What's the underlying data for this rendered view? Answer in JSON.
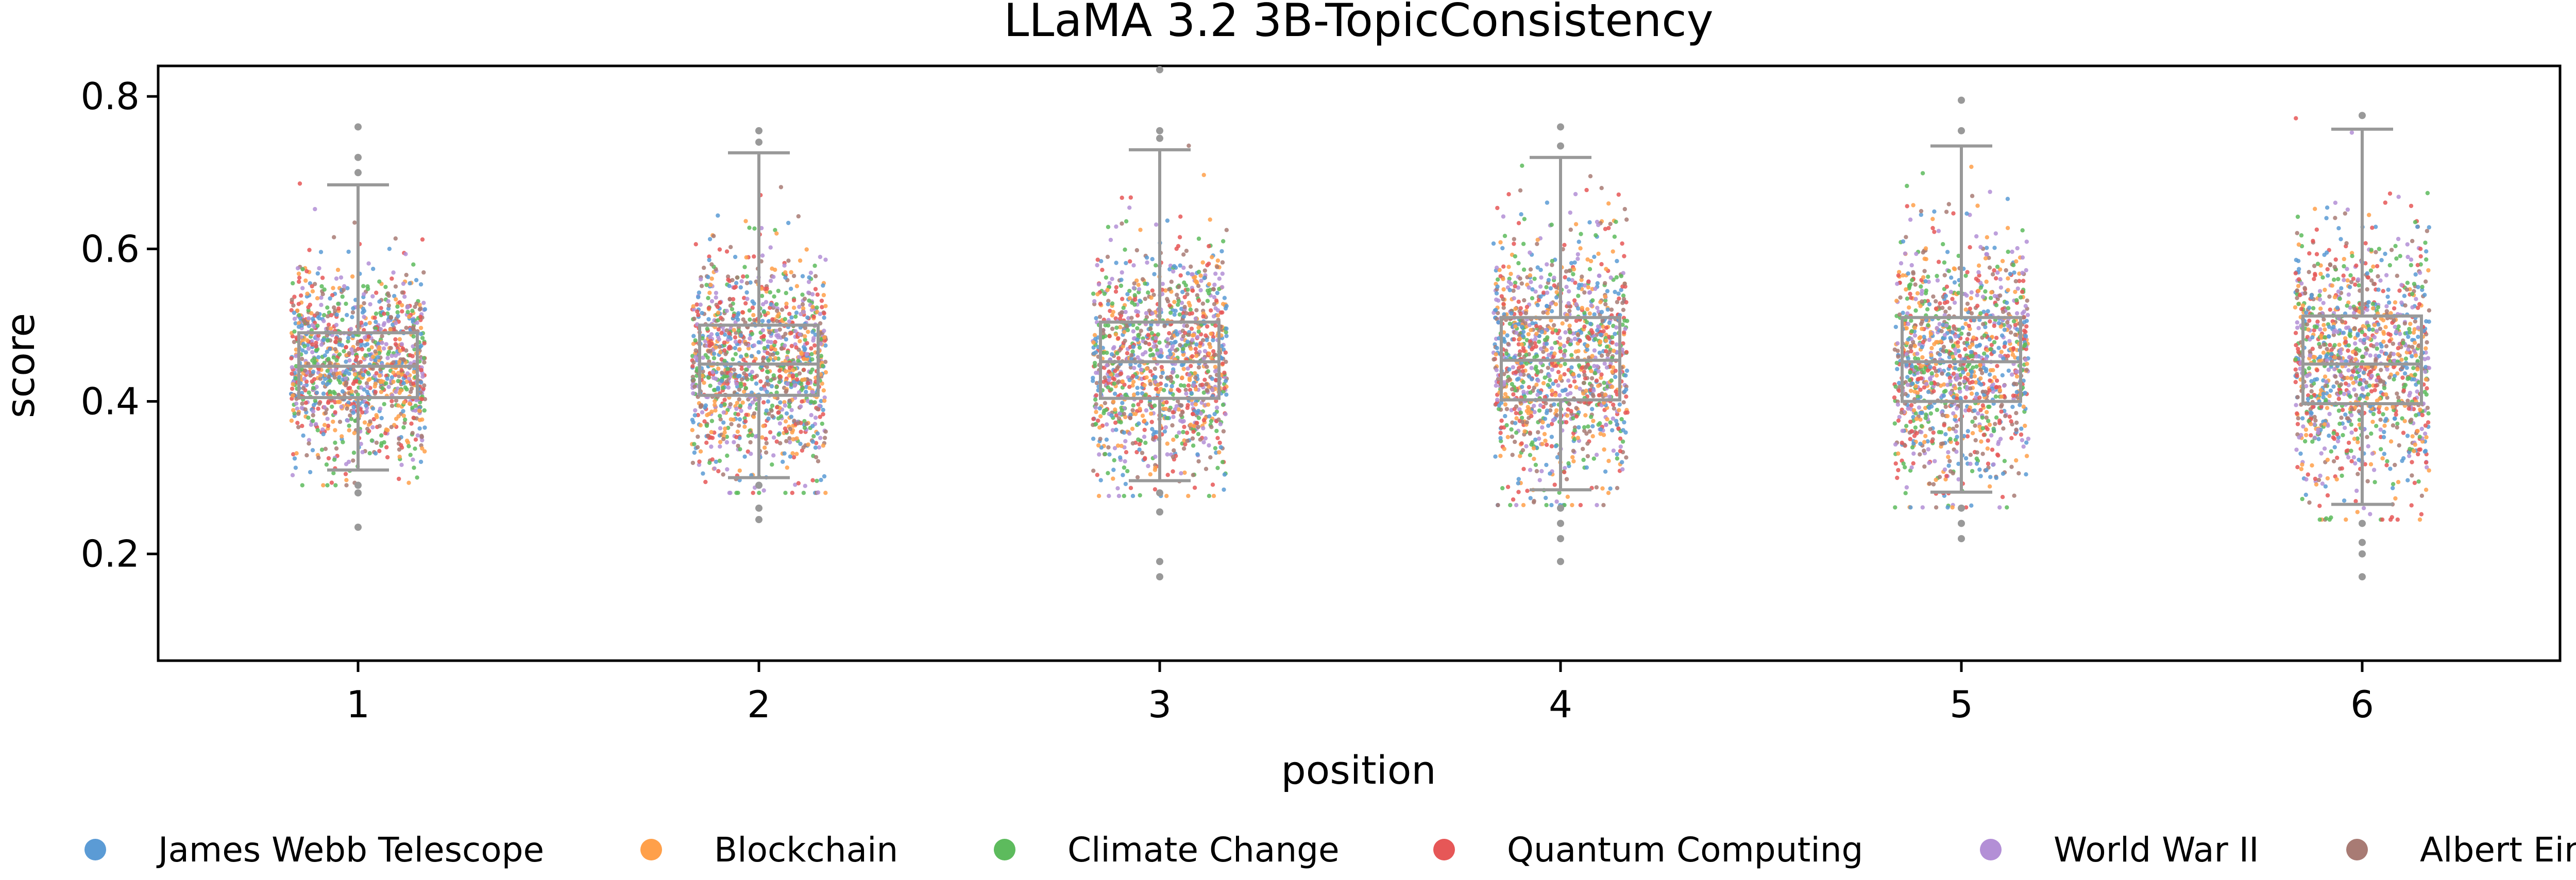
{
  "chart_data": {
    "type": "box",
    "title": "LLaMA 3.2 3B-TopicConsistency",
    "xlabel": "position",
    "ylabel": "score",
    "categories": [
      "1",
      "2",
      "3",
      "4",
      "5",
      "6"
    ],
    "ylim": [
      0.06,
      0.84
    ],
    "yticks": [
      0.2,
      0.4,
      0.6,
      0.8
    ],
    "ytick_labels": [
      "0.2",
      "0.4",
      "0.6",
      "0.8"
    ],
    "grid": false,
    "legend_position": "bottom",
    "box_color": "#999999",
    "boxes": [
      {
        "position": "1",
        "whisker_low": 0.31,
        "q1": 0.405,
        "median": 0.446,
        "q3": 0.49,
        "whisker_high": 0.684,
        "outliers": [
          0.29,
          0.28,
          0.235,
          0.7,
          0.72,
          0.76
        ]
      },
      {
        "position": "2",
        "whisker_low": 0.3,
        "q1": 0.408,
        "median": 0.449,
        "q3": 0.5,
        "whisker_high": 0.726,
        "outliers": [
          0.29,
          0.26,
          0.245,
          0.74,
          0.755
        ]
      },
      {
        "position": "3",
        "whisker_low": 0.296,
        "q1": 0.404,
        "median": 0.452,
        "q3": 0.504,
        "whisker_high": 0.73,
        "outliers": [
          0.28,
          0.255,
          0.19,
          0.17,
          0.745,
          0.755,
          0.835
        ]
      },
      {
        "position": "4",
        "whisker_low": 0.284,
        "q1": 0.402,
        "median": 0.454,
        "q3": 0.51,
        "whisker_high": 0.72,
        "outliers": [
          0.26,
          0.24,
          0.22,
          0.19,
          0.735,
          0.76
        ]
      },
      {
        "position": "5",
        "whisker_low": 0.281,
        "q1": 0.4,
        "median": 0.452,
        "q3": 0.51,
        "whisker_high": 0.735,
        "outliers": [
          0.26,
          0.24,
          0.22,
          0.755,
          0.795
        ]
      },
      {
        "position": "6",
        "whisker_low": 0.265,
        "q1": 0.397,
        "median": 0.449,
        "q3": 0.512,
        "whisker_high": 0.757,
        "outliers": [
          0.24,
          0.215,
          0.2,
          0.17,
          0.775
        ]
      }
    ],
    "series": [
      {
        "name": "James Webb Telescope",
        "color": "#5b9bd5"
      },
      {
        "name": "Blockchain",
        "color": "#ffa04a"
      },
      {
        "name": "Climate Change",
        "color": "#5dbb5d"
      },
      {
        "name": "Quantum Computing",
        "color": "#e65757"
      },
      {
        "name": "World War II",
        "color": "#b38fd6"
      },
      {
        "name": "Albert Einstein",
        "color": "#a87b74"
      }
    ],
    "points_per_position": 1200
  }
}
